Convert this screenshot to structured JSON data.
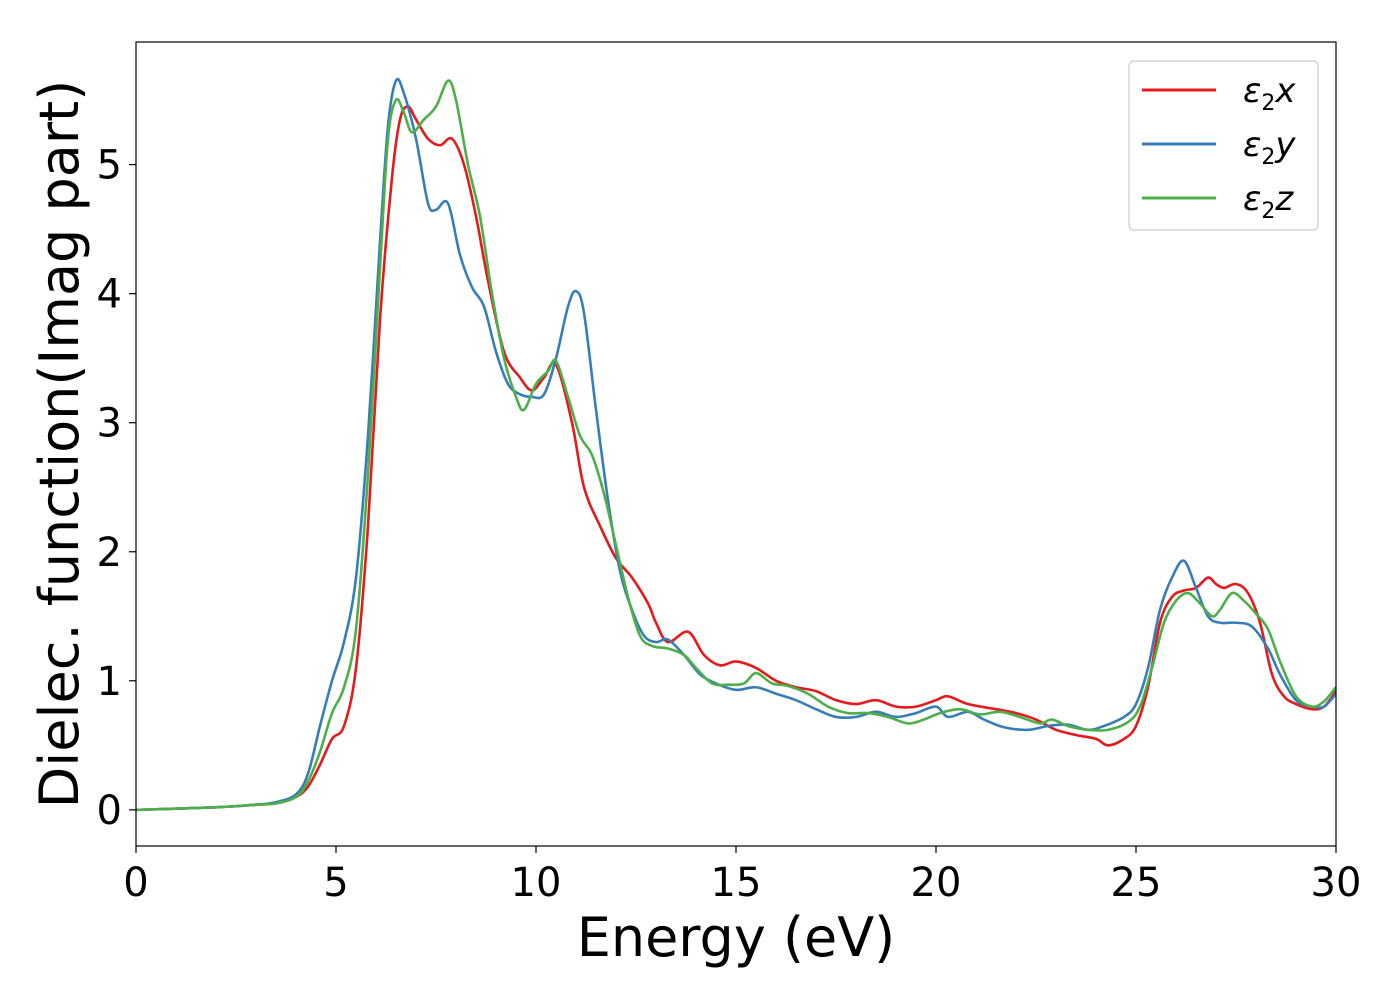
{
  "chart_data": {
    "type": "line",
    "title": "",
    "xlabel": "Energy (eV)",
    "ylabel": "Dielec. function(Imag part)",
    "xlim": [
      0,
      30
    ],
    "ylim": [
      -0.28,
      5.95
    ],
    "xticks": [
      "0",
      "5",
      "10",
      "15",
      "20",
      "25",
      "30"
    ],
    "xtick_values": [
      0,
      5,
      10,
      15,
      20,
      25,
      30
    ],
    "yticks": [
      "0",
      "1",
      "2",
      "3",
      "4",
      "5"
    ],
    "ytick_values": [
      0,
      1,
      2,
      3,
      4,
      5
    ],
    "grid": false,
    "legend_position": "top-right",
    "series": [
      {
        "name": "ε2x",
        "label_base": "ε",
        "label_sub": "2",
        "label_tail": "x",
        "color": "#e41a1c",
        "points": [
          [
            0,
            0.0
          ],
          [
            2,
            0.02
          ],
          [
            3,
            0.04
          ],
          [
            3.5,
            0.05
          ],
          [
            4,
            0.1
          ],
          [
            4.3,
            0.18
          ],
          [
            4.6,
            0.35
          ],
          [
            4.9,
            0.55
          ],
          [
            5.2,
            0.65
          ],
          [
            5.5,
            1.1
          ],
          [
            5.8,
            2.2
          ],
          [
            6.1,
            3.8
          ],
          [
            6.4,
            4.9
          ],
          [
            6.6,
            5.35
          ],
          [
            6.8,
            5.45
          ],
          [
            7.0,
            5.35
          ],
          [
            7.3,
            5.2
          ],
          [
            7.6,
            5.15
          ],
          [
            7.9,
            5.2
          ],
          [
            8.2,
            5.0
          ],
          [
            8.5,
            4.6
          ],
          [
            8.8,
            4.1
          ],
          [
            9.2,
            3.55
          ],
          [
            9.6,
            3.35
          ],
          [
            9.9,
            3.25
          ],
          [
            10.2,
            3.35
          ],
          [
            10.5,
            3.45
          ],
          [
            10.9,
            3.0
          ],
          [
            11.2,
            2.5
          ],
          [
            11.6,
            2.2
          ],
          [
            12.0,
            1.95
          ],
          [
            12.4,
            1.8
          ],
          [
            12.8,
            1.6
          ],
          [
            13.0,
            1.45
          ],
          [
            13.3,
            1.3
          ],
          [
            13.8,
            1.38
          ],
          [
            14.2,
            1.2
          ],
          [
            14.6,
            1.12
          ],
          [
            15.0,
            1.15
          ],
          [
            15.5,
            1.1
          ],
          [
            16.0,
            1.0
          ],
          [
            16.5,
            0.95
          ],
          [
            17.0,
            0.92
          ],
          [
            17.5,
            0.85
          ],
          [
            18.0,
            0.82
          ],
          [
            18.5,
            0.85
          ],
          [
            19.0,
            0.8
          ],
          [
            19.5,
            0.8
          ],
          [
            20.0,
            0.85
          ],
          [
            20.3,
            0.88
          ],
          [
            20.8,
            0.82
          ],
          [
            21.5,
            0.78
          ],
          [
            22.0,
            0.75
          ],
          [
            22.5,
            0.7
          ],
          [
            23.0,
            0.62
          ],
          [
            23.5,
            0.58
          ],
          [
            24.0,
            0.55
          ],
          [
            24.3,
            0.5
          ],
          [
            24.7,
            0.55
          ],
          [
            25.0,
            0.65
          ],
          [
            25.3,
            0.95
          ],
          [
            25.6,
            1.45
          ],
          [
            25.9,
            1.65
          ],
          [
            26.2,
            1.7
          ],
          [
            26.5,
            1.72
          ],
          [
            26.8,
            1.8
          ],
          [
            27.0,
            1.75
          ],
          [
            27.2,
            1.72
          ],
          [
            27.5,
            1.75
          ],
          [
            27.8,
            1.68
          ],
          [
            28.1,
            1.45
          ],
          [
            28.4,
            1.05
          ],
          [
            28.7,
            0.88
          ],
          [
            29.0,
            0.82
          ],
          [
            29.4,
            0.78
          ],
          [
            29.7,
            0.8
          ],
          [
            30,
            0.92
          ]
        ]
      },
      {
        "name": "ε2y",
        "label_base": "ε",
        "label_sub": "2",
        "label_tail": "y",
        "color": "#377eb8",
        "points": [
          [
            0,
            0.0
          ],
          [
            2,
            0.02
          ],
          [
            3,
            0.04
          ],
          [
            3.5,
            0.06
          ],
          [
            4,
            0.12
          ],
          [
            4.3,
            0.28
          ],
          [
            4.6,
            0.65
          ],
          [
            4.9,
            1.0
          ],
          [
            5.2,
            1.3
          ],
          [
            5.5,
            1.8
          ],
          [
            5.8,
            2.9
          ],
          [
            6.1,
            4.4
          ],
          [
            6.3,
            5.3
          ],
          [
            6.5,
            5.65
          ],
          [
            6.7,
            5.55
          ],
          [
            7.0,
            5.2
          ],
          [
            7.3,
            4.7
          ],
          [
            7.5,
            4.65
          ],
          [
            7.8,
            4.7
          ],
          [
            8.1,
            4.3
          ],
          [
            8.4,
            4.05
          ],
          [
            8.7,
            3.9
          ],
          [
            9.0,
            3.55
          ],
          [
            9.3,
            3.3
          ],
          [
            9.6,
            3.22
          ],
          [
            9.9,
            3.2
          ],
          [
            10.2,
            3.22
          ],
          [
            10.5,
            3.5
          ],
          [
            10.8,
            3.9
          ],
          [
            11.0,
            4.02
          ],
          [
            11.2,
            3.85
          ],
          [
            11.5,
            3.1
          ],
          [
            11.8,
            2.4
          ],
          [
            12.1,
            1.85
          ],
          [
            12.4,
            1.55
          ],
          [
            12.7,
            1.35
          ],
          [
            13.0,
            1.3
          ],
          [
            13.3,
            1.32
          ],
          [
            13.7,
            1.2
          ],
          [
            14.1,
            1.05
          ],
          [
            14.5,
            0.98
          ],
          [
            15.0,
            0.93
          ],
          [
            15.5,
            0.95
          ],
          [
            16.0,
            0.9
          ],
          [
            16.5,
            0.85
          ],
          [
            17.0,
            0.78
          ],
          [
            17.5,
            0.72
          ],
          [
            18.0,
            0.72
          ],
          [
            18.5,
            0.76
          ],
          [
            19.0,
            0.72
          ],
          [
            19.5,
            0.75
          ],
          [
            20.0,
            0.8
          ],
          [
            20.3,
            0.72
          ],
          [
            20.8,
            0.76
          ],
          [
            21.2,
            0.7
          ],
          [
            21.7,
            0.64
          ],
          [
            22.3,
            0.62
          ],
          [
            22.8,
            0.65
          ],
          [
            23.3,
            0.66
          ],
          [
            23.8,
            0.62
          ],
          [
            24.2,
            0.65
          ],
          [
            24.7,
            0.72
          ],
          [
            25.0,
            0.82
          ],
          [
            25.3,
            1.1
          ],
          [
            25.6,
            1.55
          ],
          [
            25.9,
            1.8
          ],
          [
            26.2,
            1.93
          ],
          [
            26.5,
            1.72
          ],
          [
            26.8,
            1.5
          ],
          [
            27.1,
            1.45
          ],
          [
            27.5,
            1.45
          ],
          [
            27.9,
            1.42
          ],
          [
            28.3,
            1.25
          ],
          [
            28.6,
            1.05
          ],
          [
            29.0,
            0.85
          ],
          [
            29.4,
            0.8
          ],
          [
            29.7,
            0.8
          ],
          [
            30,
            0.9
          ]
        ]
      },
      {
        "name": "ε2z",
        "label_base": "ε",
        "label_sub": "2",
        "label_tail": "z",
        "color": "#4daf4a",
        "points": [
          [
            0,
            0.0
          ],
          [
            2,
            0.02
          ],
          [
            3,
            0.04
          ],
          [
            3.5,
            0.05
          ],
          [
            4,
            0.1
          ],
          [
            4.3,
            0.22
          ],
          [
            4.6,
            0.45
          ],
          [
            4.9,
            0.75
          ],
          [
            5.2,
            0.95
          ],
          [
            5.5,
            1.4
          ],
          [
            5.8,
            2.6
          ],
          [
            6.1,
            4.2
          ],
          [
            6.3,
            5.2
          ],
          [
            6.5,
            5.5
          ],
          [
            6.7,
            5.4
          ],
          [
            6.9,
            5.25
          ],
          [
            7.2,
            5.35
          ],
          [
            7.5,
            5.45
          ],
          [
            7.8,
            5.65
          ],
          [
            8.0,
            5.5
          ],
          [
            8.3,
            5.0
          ],
          [
            8.6,
            4.6
          ],
          [
            8.9,
            4.0
          ],
          [
            9.2,
            3.5
          ],
          [
            9.5,
            3.2
          ],
          [
            9.7,
            3.1
          ],
          [
            10.0,
            3.3
          ],
          [
            10.3,
            3.4
          ],
          [
            10.5,
            3.48
          ],
          [
            10.8,
            3.2
          ],
          [
            11.1,
            2.9
          ],
          [
            11.4,
            2.75
          ],
          [
            11.7,
            2.45
          ],
          [
            12.0,
            2.05
          ],
          [
            12.3,
            1.65
          ],
          [
            12.6,
            1.35
          ],
          [
            12.9,
            1.27
          ],
          [
            13.3,
            1.25
          ],
          [
            13.7,
            1.2
          ],
          [
            14.0,
            1.1
          ],
          [
            14.4,
            0.98
          ],
          [
            14.8,
            0.97
          ],
          [
            15.2,
            0.98
          ],
          [
            15.5,
            1.06
          ],
          [
            15.9,
            0.98
          ],
          [
            16.3,
            0.96
          ],
          [
            16.8,
            0.9
          ],
          [
            17.3,
            0.8
          ],
          [
            17.8,
            0.75
          ],
          [
            18.3,
            0.75
          ],
          [
            18.8,
            0.72
          ],
          [
            19.3,
            0.67
          ],
          [
            19.7,
            0.7
          ],
          [
            20.1,
            0.75
          ],
          [
            20.6,
            0.78
          ],
          [
            21.1,
            0.74
          ],
          [
            21.6,
            0.76
          ],
          [
            22.1,
            0.72
          ],
          [
            22.6,
            0.67
          ],
          [
            22.9,
            0.7
          ],
          [
            23.3,
            0.65
          ],
          [
            23.8,
            0.62
          ],
          [
            24.3,
            0.62
          ],
          [
            24.8,
            0.68
          ],
          [
            25.1,
            0.8
          ],
          [
            25.4,
            1.1
          ],
          [
            25.7,
            1.45
          ],
          [
            26.0,
            1.62
          ],
          [
            26.3,
            1.68
          ],
          [
            26.6,
            1.6
          ],
          [
            26.9,
            1.5
          ],
          [
            27.1,
            1.55
          ],
          [
            27.4,
            1.68
          ],
          [
            27.7,
            1.62
          ],
          [
            28.0,
            1.52
          ],
          [
            28.3,
            1.4
          ],
          [
            28.6,
            1.15
          ],
          [
            29.0,
            0.88
          ],
          [
            29.4,
            0.8
          ],
          [
            29.7,
            0.84
          ],
          [
            30,
            0.95
          ]
        ]
      }
    ]
  }
}
